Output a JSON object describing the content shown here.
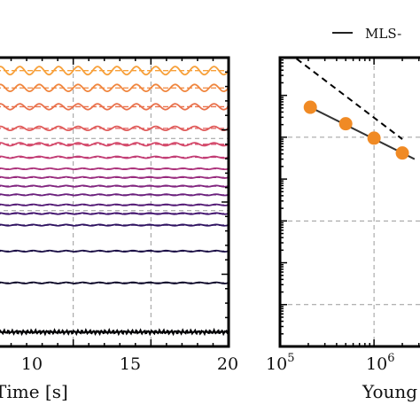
{
  "chart_data": [
    {
      "type": "line",
      "panel": "left",
      "xlabel": "Time [s]",
      "ylabel": "",
      "xlim": [
        5,
        20
      ],
      "x_ticks": [
        "10",
        "15",
        "20"
      ],
      "x_tick_values": [
        10,
        15,
        20
      ],
      "grid": true,
      "series": [
        {
          "level": 0.05,
          "amplitude": 0.006,
          "cycles": 60,
          "color": "#000004",
          "dashed": false
        },
        {
          "level": 0.22,
          "amplitude": 0.002,
          "cycles": 14,
          "color": "#0d0829",
          "dashed": true
        },
        {
          "level": 0.33,
          "amplitude": 0.002,
          "cycles": 14,
          "color": "#1d1147",
          "dashed": true
        },
        {
          "level": 0.42,
          "amplitude": 0.002,
          "cycles": 14,
          "color": "#2e1260",
          "dashed": true
        },
        {
          "level": 0.46,
          "amplitude": 0.002,
          "cycles": 14,
          "color": "#41126e",
          "dashed": true
        },
        {
          "level": 0.49,
          "amplitude": 0.002,
          "cycles": 14,
          "color": "#531a75",
          "dashed": true
        },
        {
          "level": 0.525,
          "amplitude": 0.002,
          "cycles": 14,
          "color": "#6a1f7c",
          "dashed": true
        },
        {
          "level": 0.555,
          "amplitude": 0.002,
          "cycles": 14,
          "color": "#81257f",
          "dashed": true
        },
        {
          "level": 0.585,
          "amplitude": 0.002,
          "cycles": 14,
          "color": "#982c7e",
          "dashed": true
        },
        {
          "level": 0.615,
          "amplitude": 0.002,
          "cycles": 14,
          "color": "#ad347c",
          "dashed": true
        },
        {
          "level": 0.655,
          "amplitude": 0.003,
          "cycles": 12,
          "color": "#c23d75",
          "dashed": true
        },
        {
          "level": 0.7,
          "amplitude": 0.005,
          "cycles": 12,
          "color": "#d44a6b",
          "dashed": true
        },
        {
          "level": 0.755,
          "amplitude": 0.007,
          "cycles": 12,
          "color": "#e05c5b",
          "dashed": true
        },
        {
          "level": 0.83,
          "amplitude": 0.01,
          "cycles": 12,
          "color": "#e9724d",
          "dashed": true
        },
        {
          "level": 0.895,
          "amplitude": 0.012,
          "cycles": 12,
          "color": "#f0863e",
          "dashed": true
        },
        {
          "level": 0.955,
          "amplitude": 0.014,
          "cycles": 12,
          "color": "#f7a03a",
          "dashed": true
        }
      ]
    },
    {
      "type": "scatter",
      "panel": "right",
      "xlabel": "Young",
      "xscale": "log",
      "yscale": "log",
      "xlim": [
        100000,
        4000000
      ],
      "ylim": [
        1,
        8000000
      ],
      "x_ticks": [
        {
          "value": 100000,
          "base": "10",
          "exp": "5"
        },
        {
          "value": 1000000,
          "base": "10",
          "exp": "6"
        }
      ],
      "y_gridlines": [
        10,
        1000,
        100000
      ],
      "grid": true,
      "legend_label": "MLS-",
      "legend_position": "top-right",
      "points": [
        {
          "x": 210000,
          "y": 520000
        },
        {
          "x": 500000,
          "y": 210000
        },
        {
          "x": 1000000,
          "y": 95000
        },
        {
          "x": 2000000,
          "y": 42000
        }
      ],
      "point_color": "#f08a24",
      "fit_line": {
        "x": [
          210000,
          2700000
        ],
        "y": [
          520000,
          30000
        ],
        "color": "#333333"
      },
      "dashed_line": {
        "x": [
          150000,
          2000000
        ],
        "y": [
          7500000,
          90000
        ],
        "color": "#000000"
      }
    }
  ]
}
